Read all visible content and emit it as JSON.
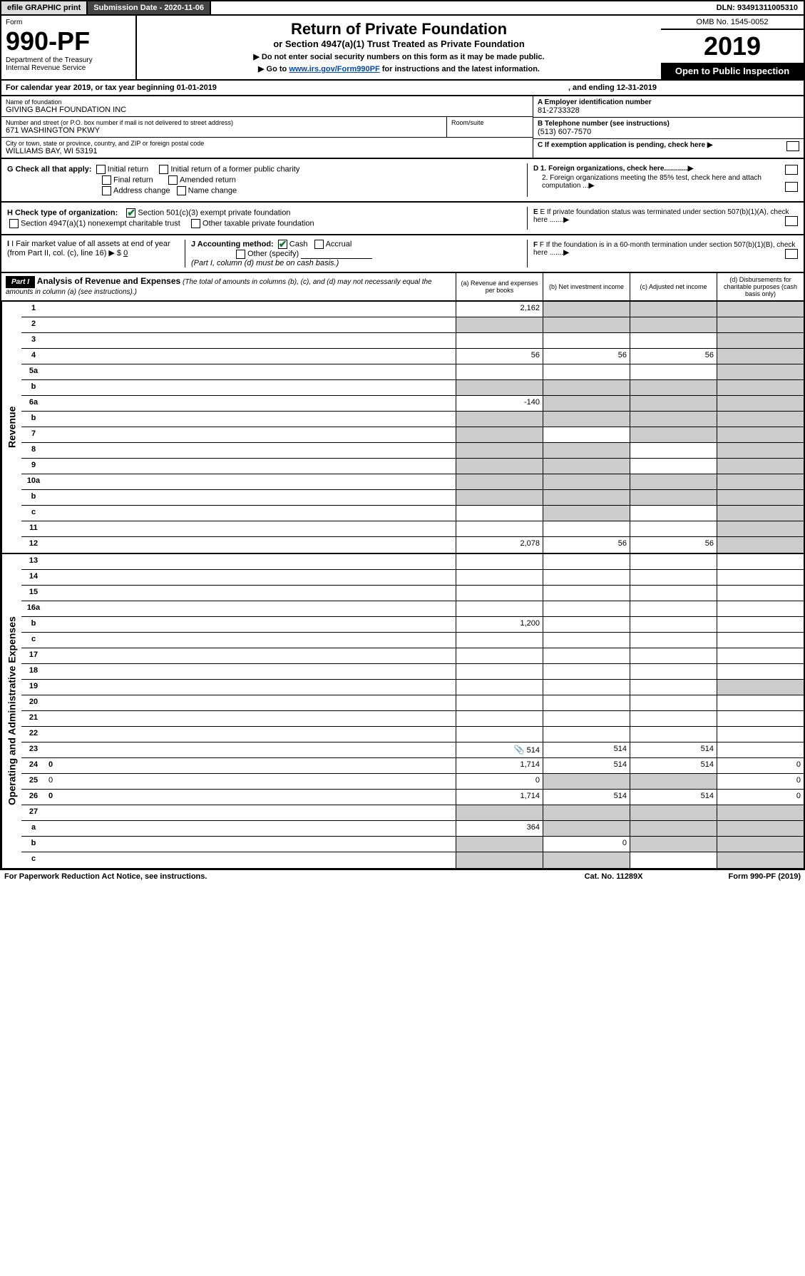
{
  "top": {
    "efile": "efile GRAPHIC print",
    "submission": "Submission Date - 2020-11-06",
    "dln": "DLN: 93491311005310"
  },
  "header": {
    "form_label": "Form",
    "form_no": "990-PF",
    "dept": "Department of the Treasury",
    "irs": "Internal Revenue Service",
    "title": "Return of Private Foundation",
    "subtitle": "or Section 4947(a)(1) Trust Treated as Private Foundation",
    "note1": "▶ Do not enter social security numbers on this form as it may be made public.",
    "note2_pre": "▶ Go to ",
    "note2_link": "www.irs.gov/Form990PF",
    "note2_post": " for instructions and the latest information.",
    "omb": "OMB No. 1545-0052",
    "year": "2019",
    "open": "Open to Public Inspection"
  },
  "calendar": {
    "text": "For calendar year 2019, or tax year beginning 01-01-2019",
    "ending": ", and ending 12-31-2019"
  },
  "info": {
    "name_label": "Name of foundation",
    "name": "GIVING BACH FOUNDATION INC",
    "addr_label": "Number and street (or P.O. box number if mail is not delivered to street address)",
    "addr": "671 WASHINGTON PKWY",
    "room_label": "Room/suite",
    "city_label": "City or town, state or province, country, and ZIP or foreign postal code",
    "city": "WILLIAMS BAY, WI  53191",
    "a_label": "A Employer identification number",
    "a_val": "81-2733328",
    "b_label": "B Telephone number (see instructions)",
    "b_val": "(513) 607-7570",
    "c_label": "C If exemption application is pending, check here"
  },
  "checks": {
    "g_label": "G Check all that apply:",
    "g1": "Initial return",
    "g2": "Initial return of a former public charity",
    "g3": "Final return",
    "g4": "Amended return",
    "g5": "Address change",
    "g6": "Name change",
    "h_label": "H Check type of organization:",
    "h1": "Section 501(c)(3) exempt private foundation",
    "h2": "Section 4947(a)(1) nonexempt charitable trust",
    "h3": "Other taxable private foundation",
    "i_label": "I Fair market value of all assets at end of year (from Part II, col. (c), line 16) ▶ $",
    "i_val": "0",
    "j_label": "J Accounting method:",
    "j1": "Cash",
    "j2": "Accrual",
    "j3": "Other (specify)",
    "j_note": "(Part I, column (d) must be on cash basis.)",
    "d1": "D 1. Foreign organizations, check here............",
    "d2": "2. Foreign organizations meeting the 85% test, check here and attach computation ...",
    "e": "E  If private foundation status was terminated under section 507(b)(1)(A), check here .......",
    "f": "F  If the foundation is in a 60-month termination under section 507(b)(1)(B), check here ......."
  },
  "part1": {
    "label": "Part I",
    "title": "Analysis of Revenue and Expenses",
    "desc": "(The total of amounts in columns (b), (c), and (d) may not necessarily equal the amounts in column (a) (see instructions).)",
    "col_a": "(a)   Revenue and expenses per books",
    "col_b": "(b)  Net investment income",
    "col_c": "(c)  Adjusted net income",
    "col_d": "(d)  Disbursements for charitable purposes (cash basis only)"
  },
  "side_labels": {
    "rev": "Revenue",
    "exp": "Operating and Administrative Expenses"
  },
  "rows": [
    {
      "n": "1",
      "d": "",
      "a": "2,162",
      "b": "",
      "c": "",
      "grey": [
        "b",
        "c",
        "d"
      ]
    },
    {
      "n": "2",
      "d": "",
      "a": "",
      "b": "",
      "c": "",
      "grey": [
        "a",
        "b",
        "c",
        "d"
      ],
      "bold_not": true
    },
    {
      "n": "3",
      "d": "",
      "a": "",
      "b": "",
      "c": "",
      "grey": [
        "d"
      ]
    },
    {
      "n": "4",
      "d": "",
      "a": "56",
      "b": "56",
      "c": "56",
      "grey": [
        "d"
      ]
    },
    {
      "n": "5a",
      "d": "",
      "a": "",
      "b": "",
      "c": "",
      "grey": [
        "d"
      ]
    },
    {
      "n": "b",
      "d": "",
      "a": "",
      "b": "",
      "c": "",
      "grey": [
        "a",
        "b",
        "c",
        "d"
      ]
    },
    {
      "n": "6a",
      "d": "",
      "a": "-140",
      "b": "",
      "c": "",
      "grey": [
        "b",
        "c",
        "d"
      ]
    },
    {
      "n": "b",
      "d": "",
      "a": "",
      "b": "",
      "c": "",
      "grey": [
        "a",
        "b",
        "c",
        "d"
      ]
    },
    {
      "n": "7",
      "d": "",
      "a": "",
      "b": "",
      "c": "",
      "grey": [
        "a",
        "c",
        "d"
      ]
    },
    {
      "n": "8",
      "d": "",
      "a": "",
      "b": "",
      "c": "",
      "grey": [
        "a",
        "b",
        "d"
      ]
    },
    {
      "n": "9",
      "d": "",
      "a": "",
      "b": "",
      "c": "",
      "grey": [
        "a",
        "b",
        "d"
      ]
    },
    {
      "n": "10a",
      "d": "",
      "a": "",
      "b": "",
      "c": "",
      "grey": [
        "a",
        "b",
        "c",
        "d"
      ]
    },
    {
      "n": "b",
      "d": "",
      "a": "",
      "b": "",
      "c": "",
      "grey": [
        "a",
        "b",
        "c",
        "d"
      ]
    },
    {
      "n": "c",
      "d": "",
      "a": "",
      "b": "",
      "c": "",
      "grey": [
        "b",
        "d"
      ]
    },
    {
      "n": "11",
      "d": "",
      "a": "",
      "b": "",
      "c": "",
      "grey": [
        "d"
      ]
    },
    {
      "n": "12",
      "d": "",
      "a": "2,078",
      "b": "56",
      "c": "56",
      "grey": [
        "d"
      ],
      "bold": true
    }
  ],
  "rows2": [
    {
      "n": "13",
      "d": "",
      "a": "",
      "b": "",
      "c": ""
    },
    {
      "n": "14",
      "d": "",
      "a": "",
      "b": "",
      "c": ""
    },
    {
      "n": "15",
      "d": "",
      "a": "",
      "b": "",
      "c": ""
    },
    {
      "n": "16a",
      "d": "",
      "a": "",
      "b": "",
      "c": ""
    },
    {
      "n": "b",
      "d": "",
      "a": "1,200",
      "b": "",
      "c": ""
    },
    {
      "n": "c",
      "d": "",
      "a": "",
      "b": "",
      "c": ""
    },
    {
      "n": "17",
      "d": "",
      "a": "",
      "b": "",
      "c": ""
    },
    {
      "n": "18",
      "d": "",
      "a": "",
      "b": "",
      "c": ""
    },
    {
      "n": "19",
      "d": "",
      "a": "",
      "b": "",
      "c": "",
      "grey": [
        "d"
      ]
    },
    {
      "n": "20",
      "d": "",
      "a": "",
      "b": "",
      "c": ""
    },
    {
      "n": "21",
      "d": "",
      "a": "",
      "b": "",
      "c": ""
    },
    {
      "n": "22",
      "d": "",
      "a": "",
      "b": "",
      "c": ""
    },
    {
      "n": "23",
      "d": "",
      "a": "514",
      "b": "514",
      "c": "514",
      "icon": true
    },
    {
      "n": "24",
      "d": "0",
      "a": "1,714",
      "b": "514",
      "c": "514",
      "bold": true
    },
    {
      "n": "25",
      "d": "0",
      "a": "0",
      "b": "",
      "c": "",
      "grey": [
        "b",
        "c"
      ]
    },
    {
      "n": "26",
      "d": "0",
      "a": "1,714",
      "b": "514",
      "c": "514",
      "bold": true
    },
    {
      "n": "27",
      "d": "",
      "a": "",
      "b": "",
      "c": "",
      "grey": [
        "a",
        "b",
        "c",
        "d"
      ]
    },
    {
      "n": "a",
      "d": "",
      "a": "364",
      "b": "",
      "c": "",
      "grey": [
        "b",
        "c",
        "d"
      ],
      "bold": true
    },
    {
      "n": "b",
      "d": "",
      "a": "",
      "b": "0",
      "c": "",
      "grey": [
        "a",
        "c",
        "d"
      ],
      "bold": true
    },
    {
      "n": "c",
      "d": "",
      "a": "",
      "b": "",
      "c": "",
      "grey": [
        "a",
        "b",
        "d"
      ],
      "bold": true
    }
  ],
  "footer": {
    "left": "For Paperwork Reduction Act Notice, see instructions.",
    "mid": "Cat. No. 11289X",
    "right": "Form 990-PF (2019)"
  }
}
